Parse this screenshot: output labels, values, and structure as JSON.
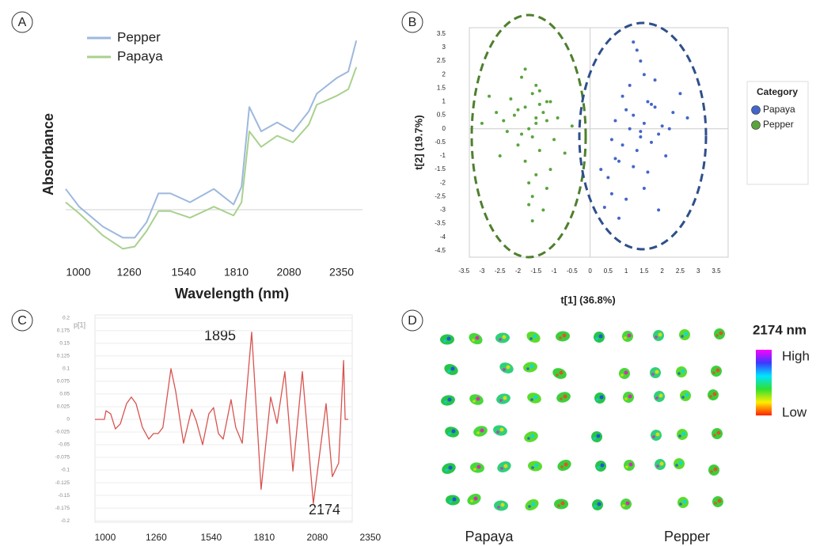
{
  "panel_labels": [
    "A",
    "B",
    "C",
    "D"
  ],
  "chart_data": [
    {
      "type": "line",
      "ylabel": "Absorbance",
      "xlabel": "Wavelength (nm)",
      "x": [
        935,
        1004,
        1126,
        1228,
        1289,
        1350,
        1411,
        1472,
        1573,
        1695,
        1796,
        1837,
        1877,
        1938,
        2020,
        2101,
        2182,
        2223,
        2324,
        2385,
        2426
      ],
      "series": [
        {
          "name": "Pepper",
          "color": "#9db8dd",
          "values": [
            0.29,
            0.21,
            0.12,
            0.07,
            0.07,
            0.14,
            0.27,
            0.27,
            0.23,
            0.29,
            0.22,
            0.3,
            0.66,
            0.55,
            0.59,
            0.55,
            0.64,
            0.72,
            0.79,
            0.82,
            0.96
          ]
        },
        {
          "name": "Papaya",
          "color": "#a9d18e",
          "values": [
            0.23,
            0.18,
            0.08,
            0.02,
            0.03,
            0.1,
            0.19,
            0.19,
            0.16,
            0.21,
            0.17,
            0.23,
            0.55,
            0.48,
            0.53,
            0.5,
            0.58,
            0.67,
            0.71,
            0.74,
            0.84
          ]
        }
      ],
      "xlim": [
        935,
        2425
      ],
      "ylim": [
        0,
        1
      ],
      "xticks": [
        1000,
        1260,
        1540,
        1810,
        2080,
        2350
      ]
    },
    {
      "type": "scatter",
      "xlabel": "t[1] (36.8%)",
      "ylabel": "t[2] (19.7%)",
      "legend_title": "Category",
      "legend": "right",
      "series": [
        {
          "name": "Papaya",
          "color": "#4466c8",
          "x": [
            1.2,
            1.5,
            1.8,
            0.9,
            1.4,
            2.0,
            1.1,
            1.6,
            2.3,
            0.7,
            1.3,
            1.7,
            0.8,
            1.0,
            1.9,
            1.5,
            0.5,
            2.5,
            1.2,
            0.6,
            1.4,
            1.8,
            0.4,
            0.9,
            2.1,
            1.6,
            1.1,
            0.7,
            1.3,
            2.7,
            0.8,
            1.5,
            1.0,
            0.6,
            1.7,
            1.9,
            0.3,
            1.2,
            2.2,
            1.4
          ],
          "values": [
            0.5,
            0.2,
            0.8,
            1.2,
            -0.3,
            0.1,
            1.6,
            1.0,
            0.6,
            0.3,
            -0.8,
            -0.5,
            -1.2,
            0.7,
            -0.2,
            2.0,
            -1.8,
            1.3,
            -1.4,
            -2.4,
            2.5,
            1.8,
            -2.9,
            -0.6,
            -1.0,
            -1.6,
            0.0,
            -1.1,
            2.9,
            0.4,
            -3.3,
            -2.2,
            -2.6,
            -0.4,
            0.9,
            -3.0,
            -1.5,
            3.2,
            0.0,
            -0.1
          ]
        },
        {
          "name": "Pepper",
          "color": "#5aa43d",
          "x": [
            -2.1,
            -1.8,
            -1.5,
            -1.2,
            -2.4,
            -1.9,
            -1.6,
            -1.3,
            -1.0,
            -2.2,
            -1.7,
            -1.4,
            -2.6,
            -0.9,
            -1.8,
            -1.5,
            -2.0,
            -1.1,
            -1.7,
            -1.4,
            -2.3,
            -1.6,
            -1.2,
            -2.8,
            -0.7,
            -1.9,
            -1.5,
            -1.3,
            -2.0,
            -1.6,
            -1.8,
            -1.4,
            -1.1,
            -2.5,
            -1.7,
            -1.2,
            -1.5,
            -3.0,
            -0.5,
            -1.6
          ],
          "values": [
            0.5,
            0.8,
            0.2,
            1.0,
            0.3,
            -0.2,
            1.3,
            0.6,
            -0.4,
            1.1,
            0.0,
            -0.8,
            0.6,
            0.4,
            -1.2,
            1.6,
            -0.6,
            -1.5,
            -2.0,
            0.9,
            -0.1,
            -2.5,
            0.3,
            1.2,
            -0.9,
            1.9,
            -1.7,
            -3.0,
            0.7,
            -0.3,
            2.2,
            1.4,
            1.0,
            -1.0,
            -2.8,
            -2.2,
            0.4,
            0.2,
            0.1,
            -3.4
          ]
        }
      ],
      "xlim": [
        -3.35,
        3.83
      ],
      "ylim": [
        -4.74,
        3.73
      ],
      "xticks": [
        -3.5,
        -3,
        -2.5,
        -2,
        -1.5,
        -1,
        -0.5,
        0,
        0.5,
        1,
        1.5,
        2,
        2.5,
        3,
        3.5
      ],
      "yticks": [
        3.5,
        3,
        2.5,
        2,
        1.5,
        1,
        0.5,
        0,
        -0.5,
        -1,
        -1.5,
        -2,
        -2.5,
        -3,
        -3.5,
        -4,
        -4.5
      ]
    },
    {
      "type": "line",
      "ylabel": "p[1]",
      "grid": true,
      "annotations": [
        {
          "text": "1895"
        },
        {
          "text": "2174"
        }
      ],
      "x": [
        948,
        996,
        1004,
        1028,
        1052,
        1077,
        1109,
        1133,
        1157,
        1190,
        1222,
        1246,
        1270,
        1294,
        1335,
        1359,
        1399,
        1440,
        1464,
        1496,
        1528,
        1552,
        1577,
        1601,
        1641,
        1665,
        1698,
        1746,
        1794,
        1843,
        1875,
        1915,
        1956,
        2004,
        2060,
        2125,
        2157,
        2189,
        2214,
        2222,
        2238
      ],
      "series": [
        {
          "name": "p[1]",
          "color": "#d9534f",
          "values": [
            0,
            0,
            0.017,
            0.011,
            -0.019,
            -0.009,
            0.031,
            0.044,
            0.031,
            -0.016,
            -0.039,
            -0.028,
            -0.028,
            -0.016,
            0.1,
            0.055,
            -0.047,
            0.02,
            -0.003,
            -0.05,
            0.011,
            0.023,
            -0.028,
            -0.039,
            0.039,
            -0.016,
            -0.047,
            0.172,
            -0.138,
            0.044,
            -0.008,
            0.094,
            -0.102,
            0.094,
            -0.166,
            0.031,
            -0.113,
            -0.086,
            0.116,
            0,
            0
          ]
        }
      ],
      "xlim": [
        948,
        2258
      ],
      "ylim": [
        -0.203,
        0.206
      ],
      "xticks": [
        1000,
        1260,
        1540,
        1810,
        2080,
        2350
      ],
      "yticks": [
        0.2,
        0.175,
        0.15,
        0.125,
        0.1,
        0.075,
        0.05,
        0.025,
        0,
        -0.025,
        -0.05,
        -0.075,
        -0.1,
        -0.125,
        -0.15,
        -0.175,
        -0.2
      ]
    }
  ],
  "image_panel": {
    "title": "2174 nm",
    "scale_high": "High",
    "scale_low": "Low",
    "groups": [
      "Papaya",
      "Pepper"
    ]
  }
}
